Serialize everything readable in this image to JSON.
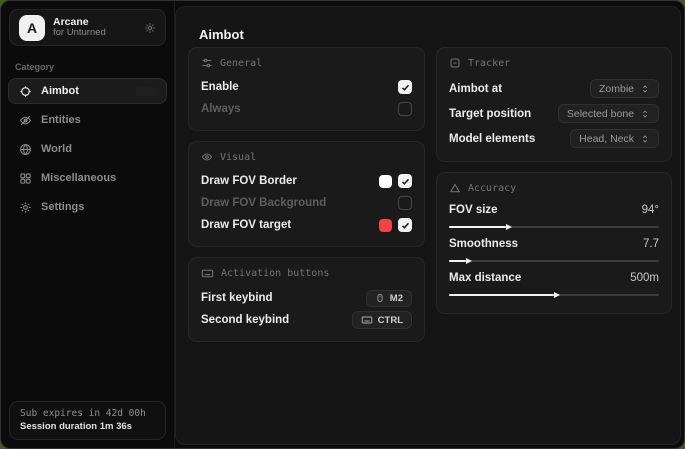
{
  "app": {
    "name": "Arcane",
    "subtitle": "for Unturned",
    "logo_letter": "A"
  },
  "sidebar": {
    "category_label": "Category",
    "items": [
      {
        "label": "Aimbot",
        "icon": "crosshair-icon",
        "active": true
      },
      {
        "label": "Entities",
        "icon": "eye-off-icon",
        "active": false
      },
      {
        "label": "World",
        "icon": "globe-icon",
        "active": false
      },
      {
        "label": "Miscellaneous",
        "icon": "grid-icon",
        "active": false
      },
      {
        "label": "Settings",
        "icon": "gear-icon",
        "active": false
      }
    ],
    "footer": {
      "line1": "Sub expires in 42d 00h",
      "line2": "Session duration 1m 36s"
    }
  },
  "main": {
    "title": "Aimbot",
    "sections": {
      "general": {
        "title": "General",
        "icon": "sliders-icon",
        "rows": [
          {
            "label": "Enable",
            "checked": true
          },
          {
            "label": "Always",
            "checked": false
          }
        ]
      },
      "visual": {
        "title": "Visual",
        "icon": "eye-icon",
        "rows": [
          {
            "label": "Draw FOV Border",
            "checked": true,
            "swatch": "#ffffff"
          },
          {
            "label": "Draw FOV Background",
            "checked": false
          },
          {
            "label": "Draw FOV target",
            "checked": true,
            "swatch": "#ef4444"
          }
        ]
      },
      "activation": {
        "title": "Activation buttons",
        "icon": "keyboard-icon",
        "rows": [
          {
            "label": "First keybind",
            "key": "M2",
            "key_icon": "mouse-icon"
          },
          {
            "label": "Second keybind",
            "key": "CTRL",
            "key_icon": "keyboard-icon"
          }
        ]
      },
      "tracker": {
        "title": "Tracker",
        "icon": "focus-icon",
        "rows": [
          {
            "label": "Aimbot at",
            "value": "Zombie"
          },
          {
            "label": "Target position",
            "value": "Selected bone"
          },
          {
            "label": "Model elements",
            "value": "Head, Neck"
          }
        ]
      },
      "accuracy": {
        "title": "Accuracy",
        "icon": "triangle-icon",
        "rows": [
          {
            "label": "FOV size",
            "value": "94°",
            "percent": 27
          },
          {
            "label": "Smoothness",
            "value": "7.7",
            "percent": 8
          },
          {
            "label": "Max distance",
            "value": "500m",
            "percent": 50
          }
        ]
      }
    }
  },
  "colors": {
    "accent_red": "#ef4444",
    "swatch_white": "#ffffff"
  }
}
